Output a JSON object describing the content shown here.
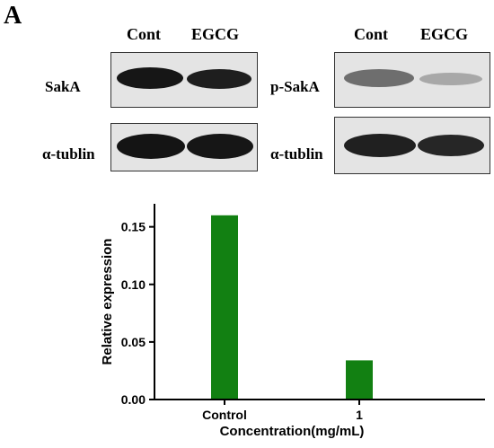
{
  "figure": {
    "panel_letter": "A",
    "blots": {
      "left": {
        "lanes": [
          "Cont",
          "EGCG"
        ],
        "rows": [
          {
            "label": "SakA",
            "intensities": [
              0.95,
              0.9
            ]
          },
          {
            "label": "α-tublin",
            "intensities": [
              0.95,
              0.95
            ]
          }
        ]
      },
      "right": {
        "lanes": [
          "Cont",
          "EGCG"
        ],
        "rows": [
          {
            "label": "p-SakA",
            "intensities": [
              0.6,
              0.35
            ]
          },
          {
            "label": "α-tublin",
            "intensities": [
              0.95,
              0.92
            ]
          }
        ]
      }
    }
  },
  "chart_data": {
    "type": "bar",
    "categories": [
      "Control",
      "1"
    ],
    "values": [
      0.16,
      0.034
    ],
    "xlabel": "Concentration(mg/mL)",
    "ylabel": "Relative expression",
    "ylim": [
      0,
      0.17
    ],
    "yticks": [
      "0.00",
      "0.05",
      "0.10",
      "0.15"
    ],
    "bar_color": "#128012",
    "grid": false
  }
}
